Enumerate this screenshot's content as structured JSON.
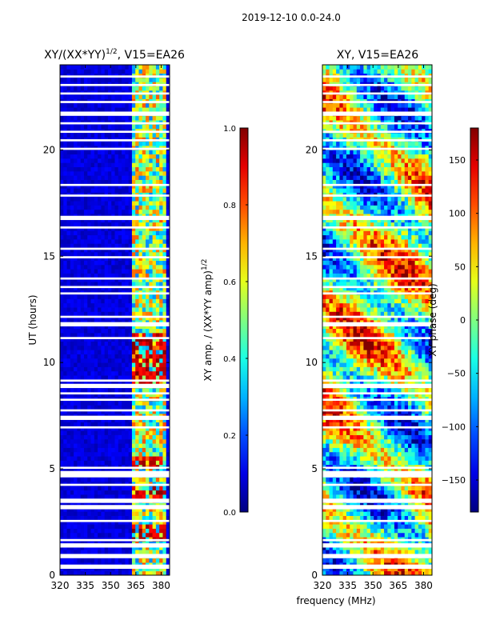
{
  "suptitle": "2019-12-10 0.0-24.0",
  "shared_xlabel": "frequency (MHz)",
  "colors": {
    "low": "#00007f",
    "mid": "#7fff7f",
    "high": "#7f0000",
    "gap": "#ffffff"
  },
  "chart_data": [
    {
      "type": "heatmap",
      "title": "XY/(XX*YY)",
      "title_exponent": "1/2",
      "title_suffix": ", V15=EA26",
      "ylabel": "UT (hours)",
      "xlim": [
        320,
        385
      ],
      "ylim": [
        0,
        24
      ],
      "xticks": [
        320,
        335,
        350,
        365,
        380
      ],
      "yticks": [
        0,
        5,
        10,
        15,
        20
      ],
      "colorbar": {
        "label": "XY amp. / (XX*YY amp)",
        "label_exponent": "1/2",
        "range": [
          0.0,
          1.0
        ],
        "ticks": [
          "0.0",
          "0.2",
          "0.4",
          "0.6",
          "0.8",
          "1.0"
        ]
      },
      "background_value": 0.05,
      "active_band_MHz": [
        362,
        382
      ],
      "flagged_hours": [
        [
          0.3,
          0.5
        ],
        [
          0.8,
          1.0
        ],
        [
          1.3,
          1.5
        ],
        [
          1.6,
          1.7
        ],
        [
          2.5,
          2.6
        ],
        [
          3.1,
          3.3
        ],
        [
          3.4,
          3.6
        ],
        [
          4.2,
          4.3
        ],
        [
          4.6,
          4.9
        ],
        [
          5.0,
          5.1
        ],
        [
          6.9,
          7.0
        ],
        [
          7.3,
          7.5
        ],
        [
          7.7,
          7.8
        ],
        [
          8.2,
          8.3
        ],
        [
          8.5,
          8.6
        ],
        [
          8.8,
          9.0
        ],
        [
          9.1,
          9.2
        ],
        [
          11.1,
          11.2
        ],
        [
          11.7,
          11.9
        ],
        [
          12.1,
          12.2
        ],
        [
          13.2,
          13.3
        ],
        [
          13.5,
          13.6
        ],
        [
          13.9,
          14.0
        ],
        [
          14.9,
          15.0
        ],
        [
          15.3,
          15.4
        ],
        [
          16.3,
          16.4
        ],
        [
          16.7,
          16.9
        ],
        [
          17.8,
          17.9
        ],
        [
          18.3,
          18.4
        ],
        [
          20.0,
          20.1
        ],
        [
          20.4,
          20.5
        ],
        [
          20.8,
          20.9
        ],
        [
          21.2,
          21.3
        ],
        [
          21.6,
          21.8
        ],
        [
          22.2,
          22.3
        ],
        [
          22.6,
          22.7
        ],
        [
          23.0,
          23.1
        ],
        [
          23.4,
          23.5
        ]
      ]
    },
    {
      "type": "heatmap",
      "title": "XY",
      "title_exponent": "",
      "title_suffix": ", V15=EA26",
      "ylabel": "",
      "xlim": [
        320,
        385
      ],
      "ylim": [
        0,
        24
      ],
      "xticks": [
        320,
        335,
        350,
        365,
        380
      ],
      "yticks": [
        0,
        5,
        10,
        15,
        20
      ],
      "colorbar": {
        "label": "XY phase (deg)",
        "label_exponent": "",
        "range": [
          -180,
          180
        ],
        "ticks": [
          "−150",
          "−100",
          "−50",
          "0",
          "50",
          "100",
          "150"
        ],
        "tick_values": [
          -150,
          -100,
          -50,
          0,
          50,
          100,
          150
        ]
      },
      "flagged_hours": [
        [
          0.3,
          0.5
        ],
        [
          0.8,
          1.0
        ],
        [
          1.3,
          1.5
        ],
        [
          1.6,
          1.7
        ],
        [
          2.5,
          2.6
        ],
        [
          3.1,
          3.3
        ],
        [
          3.4,
          3.6
        ],
        [
          4.2,
          4.3
        ],
        [
          4.6,
          4.9
        ],
        [
          5.0,
          5.1
        ],
        [
          6.9,
          7.0
        ],
        [
          7.3,
          7.5
        ],
        [
          7.7,
          7.8
        ],
        [
          8.2,
          8.3
        ],
        [
          8.5,
          8.6
        ],
        [
          8.8,
          9.0
        ],
        [
          9.1,
          9.2
        ],
        [
          11.1,
          11.2
        ],
        [
          11.7,
          11.9
        ],
        [
          12.1,
          12.2
        ],
        [
          13.2,
          13.3
        ],
        [
          13.5,
          13.6
        ],
        [
          13.9,
          14.0
        ],
        [
          14.9,
          15.0
        ],
        [
          15.3,
          15.4
        ],
        [
          16.3,
          16.4
        ],
        [
          16.7,
          16.9
        ],
        [
          17.8,
          17.9
        ],
        [
          18.3,
          18.4
        ],
        [
          20.0,
          20.1
        ],
        [
          20.4,
          20.5
        ],
        [
          20.8,
          20.9
        ],
        [
          21.2,
          21.3
        ],
        [
          21.6,
          21.8
        ],
        [
          22.2,
          22.3
        ],
        [
          22.6,
          22.7
        ],
        [
          23.0,
          23.1
        ],
        [
          23.4,
          23.5
        ]
      ]
    }
  ]
}
